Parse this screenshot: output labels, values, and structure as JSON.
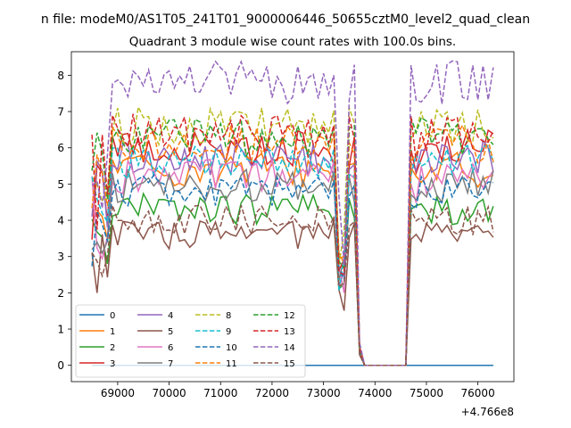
{
  "suptitle": "n file: modeM0/AS1T05_241T01_9000006446_50655cztM0_level2_quad_clean",
  "chart_data": {
    "type": "line",
    "title": "Quadrant 3 module wise count rates with 100.0s bins.",
    "xlabel": "",
    "ylabel": "",
    "x_offset_label": "+4.766e8",
    "xlim": [
      68100,
      76700
    ],
    "ylim": [
      -0.45,
      8.65
    ],
    "xticks": [
      69000,
      70000,
      71000,
      72000,
      73000,
      74000,
      75000,
      76000
    ],
    "xtick_labels": [
      "69000",
      "70000",
      "71000",
      "72000",
      "73000",
      "74000",
      "75000",
      "76000"
    ],
    "yticks": [
      0,
      1,
      2,
      3,
      4,
      5,
      6,
      7,
      8
    ],
    "ytick_labels": [
      "0",
      "1",
      "2",
      "3",
      "4",
      "5",
      "6",
      "7",
      "8"
    ],
    "time_range": [
      68500,
      76300
    ],
    "bin_size": 100,
    "gap": {
      "drop_start": 73700,
      "zero_from": 73800,
      "zero_to": 74600,
      "rise_end": 74800
    },
    "legend_position": "lower-left",
    "legend_columns": 4,
    "series": [
      {
        "name": "0",
        "color": "#1f77b4",
        "dashed": false,
        "level": 0.0
      },
      {
        "name": "1",
        "color": "#ff7f0e",
        "dashed": false,
        "level": 5.4
      },
      {
        "name": "2",
        "color": "#2ca02c",
        "dashed": false,
        "level": 4.3
      },
      {
        "name": "3",
        "color": "#d62728",
        "dashed": false,
        "level": 6.0
      },
      {
        "name": "4",
        "color": "#9467bd",
        "dashed": false,
        "level": 5.7
      },
      {
        "name": "5",
        "color": "#8c564b",
        "dashed": false,
        "level": 3.6
      },
      {
        "name": "6",
        "color": "#e377c2",
        "dashed": false,
        "level": 5.2
      },
      {
        "name": "7",
        "color": "#7f7f7f",
        "dashed": false,
        "level": 4.95
      },
      {
        "name": "8",
        "color": "#bcbd22",
        "dashed": true,
        "level": 6.6
      },
      {
        "name": "9",
        "color": "#17becf",
        "dashed": true,
        "level": 5.6
      },
      {
        "name": "10",
        "color": "#1f77b4",
        "dashed": true,
        "level": 4.8
      },
      {
        "name": "11",
        "color": "#ff7f0e",
        "dashed": true,
        "level": 6.1
      },
      {
        "name": "12",
        "color": "#2ca02c",
        "dashed": true,
        "level": 6.3
      },
      {
        "name": "13",
        "color": "#d62728",
        "dashed": true,
        "level": 6.4
      },
      {
        "name": "14",
        "color": "#9467bd",
        "dashed": true,
        "level": 7.8
      },
      {
        "name": "15",
        "color": "#8c564b",
        "dashed": true,
        "level": 4.0
      }
    ]
  }
}
